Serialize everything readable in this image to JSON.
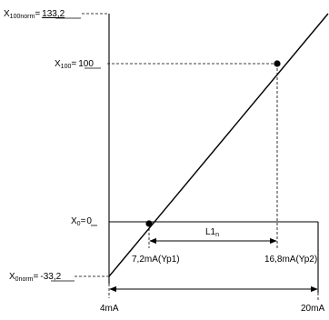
{
  "labels": {
    "x100norm": {
      "sym": "X",
      "sub": "100norm",
      "eq": "=",
      "val": "133,2"
    },
    "x100": {
      "sym": "X",
      "sub": "100",
      "eq": "=",
      "val": "100"
    },
    "x0": {
      "sym": "X",
      "sub": "0",
      "eq": "=",
      "val": "0"
    },
    "x0norm": {
      "sym": "X",
      "sub": "0norm",
      "eq": "=",
      "val": "-33,2"
    },
    "yp1": "7,2mA(Yp1)",
    "yp2": "16,8mA(Yp2)",
    "l1": {
      "main": "L1",
      "sub": "n"
    },
    "ma4": "4mA",
    "ma20": "20mA"
  }
}
